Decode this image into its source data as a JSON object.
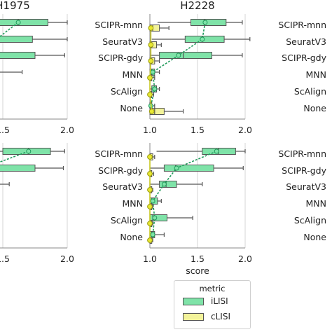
{
  "chart_data": [
    {
      "type": "box",
      "title": "H1975",
      "xlabel": "",
      "xticks": [
        "1.5",
        "2.0"
      ],
      "xlim": [
        1.0,
        2.0
      ],
      "categories": [],
      "series": [
        {
          "name": "iLISI",
          "boxes": [
            {
              "q1": 1.05,
              "med": 1.62,
              "q3": 1.85,
              "wlo": 1.0,
              "whi": 2.0
            },
            {
              "q1": 1.1,
              "med": 1.45,
              "q3": 1.73,
              "wlo": 1.0,
              "whi": 2.0
            },
            {
              "q1": 1.08,
              "med": 1.3,
              "q3": 1.75,
              "wlo": 1.0,
              "whi": 1.98
            },
            {
              "q1": 1.0,
              "med": 1.05,
              "q3": 1.1,
              "wlo": 1.0,
              "whi": 1.65
            }
          ],
          "means": [
            1.62,
            1.45,
            1.35,
            1.05
          ]
        }
      ]
    },
    {
      "type": "box",
      "title": "H2228",
      "xlabel": "",
      "xticks": [
        "1.0",
        "1.5",
        "2.0"
      ],
      "xlim": [
        1.0,
        2.0
      ],
      "categories": [
        "SCIPR-mnn",
        "SeuratV3",
        "SCIPR-gdy",
        "MNN",
        "ScAlign",
        "None"
      ],
      "series": [
        {
          "name": "iLISI",
          "boxes": [
            {
              "q1": 1.43,
              "med": 1.57,
              "q3": 1.8,
              "wlo": 1.08,
              "whi": 1.97
            },
            {
              "q1": 1.37,
              "med": 1.55,
              "q3": 1.78,
              "wlo": 1.02,
              "whi": 2.05
            },
            {
              "q1": 1.1,
              "med": 1.35,
              "q3": 1.65,
              "wlo": 1.0,
              "whi": 1.97
            },
            {
              "q1": 1.0,
              "med": 1.02,
              "q3": 1.05,
              "wlo": 1.0,
              "whi": 1.1
            },
            {
              "q1": 1.02,
              "med": 1.05,
              "q3": 1.07,
              "wlo": 1.0,
              "whi": 1.1
            },
            {
              "q1": 1.0,
              "med": 1.0,
              "q3": 1.02,
              "wlo": 1.0,
              "whi": 1.05
            }
          ],
          "means": [
            1.58,
            1.55,
            1.3,
            1.03,
            1.05,
            1.01
          ]
        },
        {
          "name": "cLISI",
          "boxes": [
            {
              "q1": 1.0,
              "med": 1.03,
              "q3": 1.1,
              "wlo": 1.0,
              "whi": 1.2
            },
            {
              "q1": 1.0,
              "med": 1.02,
              "q3": 1.07,
              "wlo": 1.0,
              "whi": 1.12
            },
            {
              "q1": 1.0,
              "med": 1.02,
              "q3": 1.05,
              "wlo": 1.0,
              "whi": 1.1
            },
            {
              "q1": 1.0,
              "med": 1.0,
              "q3": 1.02,
              "wlo": 1.0,
              "whi": 1.05
            },
            {
              "q1": 1.0,
              "med": 1.0,
              "q3": 1.02,
              "wlo": 1.0,
              "whi": 1.04
            },
            {
              "q1": 1.0,
              "med": 1.05,
              "q3": 1.15,
              "wlo": 1.0,
              "whi": 1.35
            }
          ],
          "means": [
            1.01,
            1.01,
            1.01,
            1.0,
            1.0,
            1.02
          ]
        }
      ]
    },
    {
      "type": "box",
      "title": "",
      "xlabel": "",
      "xticks": [],
      "xlim": [
        1.0,
        2.0
      ],
      "categories": [
        "SCIPR-mnn",
        "SeuratV3",
        "SCIPR-gdy",
        "MNN",
        "ScAlign",
        "None"
      ],
      "series": []
    },
    {
      "type": "box",
      "title": "",
      "xlabel": "",
      "xticks": [
        "1.5",
        "2.0"
      ],
      "xlim": [
        1.0,
        2.0
      ],
      "categories": [],
      "series": [
        {
          "name": "iLISI",
          "boxes": [
            {
              "q1": 1.5,
              "med": 1.7,
              "q3": 1.87,
              "wlo": 1.15,
              "whi": 1.98
            },
            {
              "q1": 1.0,
              "med": 1.4,
              "q3": 1.75,
              "wlo": 1.0,
              "whi": 1.97
            },
            {
              "q1": 1.0,
              "med": 1.02,
              "q3": 1.05,
              "wlo": 1.0,
              "whi": 1.55
            }
          ],
          "means": [
            1.7,
            1.35,
            1.03
          ]
        }
      ]
    },
    {
      "type": "box",
      "title": "",
      "xlabel": "score",
      "xticks": [
        "1.0",
        "1.5",
        "2.0"
      ],
      "xlim": [
        1.0,
        2.0
      ],
      "categories": [
        "SCIPR-mnn",
        "SCIPR-gdy",
        "SeuratV3",
        "MNN",
        "ScAlign",
        "None"
      ],
      "series": [
        {
          "name": "iLISI",
          "boxes": [
            {
              "q1": 1.55,
              "med": 1.72,
              "q3": 1.9,
              "wlo": 1.07,
              "whi": 2.0
            },
            {
              "q1": 1.15,
              "med": 1.27,
              "q3": 1.67,
              "wlo": 1.0,
              "whi": 1.98
            },
            {
              "q1": 1.1,
              "med": 1.17,
              "q3": 1.28,
              "wlo": 1.0,
              "whi": 1.55
            },
            {
              "q1": 1.0,
              "med": 1.02,
              "q3": 1.08,
              "wlo": 1.0,
              "whi": 1.12
            },
            {
              "q1": 1.0,
              "med": 1.03,
              "q3": 1.18,
              "wlo": 1.0,
              "whi": 1.45
            },
            {
              "q1": 1.0,
              "med": 1.02,
              "q3": 1.05,
              "wlo": 1.0,
              "whi": 1.15
            }
          ],
          "means": [
            1.7,
            1.28,
            1.15,
            1.03,
            1.05,
            1.03
          ]
        },
        {
          "name": "cLISI",
          "boxes": [
            {
              "q1": 1.0,
              "med": 1.0,
              "q3": 1.03,
              "wlo": 1.0,
              "whi": 1.05
            },
            {
              "q1": 1.0,
              "med": 1.0,
              "q3": 1.02,
              "wlo": 1.0,
              "whi": 1.04
            },
            {
              "q1": 1.0,
              "med": 1.0,
              "q3": 1.02,
              "wlo": 1.0,
              "whi": 1.03
            },
            {
              "q1": 1.0,
              "med": 1.0,
              "q3": 1.02,
              "wlo": 1.0,
              "whi": 1.03
            },
            {
              "q1": 1.0,
              "med": 1.0,
              "q3": 1.02,
              "wlo": 1.0,
              "whi": 1.03
            },
            {
              "q1": 1.0,
              "med": 1.0,
              "q3": 1.02,
              "wlo": 1.0,
              "whi": 1.03
            }
          ],
          "means": [
            1.0,
            1.0,
            1.0,
            1.0,
            1.0,
            1.0
          ]
        }
      ]
    },
    {
      "type": "box",
      "title": "",
      "xlabel": "",
      "xticks": [],
      "xlim": [
        1.0,
        2.0
      ],
      "categories": [
        "SCIPR-mnn",
        "SCIPR-gdy",
        "SeuratV3",
        "MNN",
        "ScAlign",
        "None"
      ],
      "series": []
    }
  ],
  "legend": {
    "title": "metric",
    "items": [
      {
        "label": "iLISI",
        "color": "#7fe3a8"
      },
      {
        "label": "cLISI",
        "color": "#f3f39a"
      }
    ]
  },
  "colors": {
    "ilisi_fill": "#7fe3a8",
    "ilisi_line": "#1f9a5a",
    "clisi_fill": "#f3f39a",
    "clisi_point": "#e8e832",
    "grid": "#d6d6d6",
    "box_edge": "#555555"
  }
}
